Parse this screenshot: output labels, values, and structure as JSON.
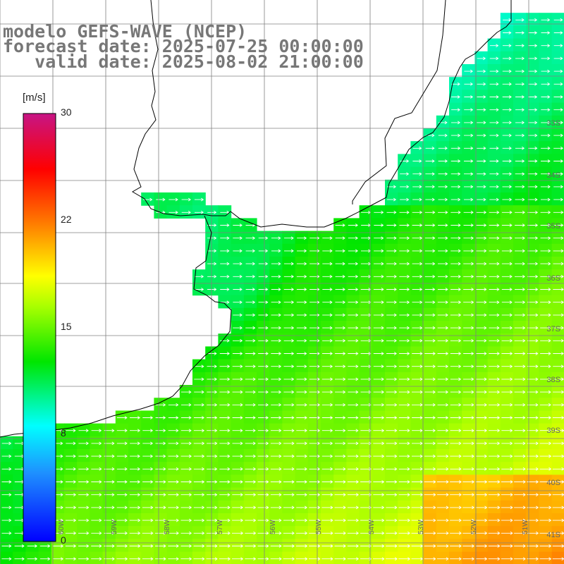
{
  "title": {
    "line1": "modelo GEFS-WAVE (NCEP)",
    "line2": "forecast date: 2025-07-25 00:00:00",
    "line3": "   valid date: 2025-08-02 21:00:00"
  },
  "colorbar": {
    "unit": "[m/s]",
    "range": [
      0,
      30
    ],
    "ticks": [
      {
        "value": 30,
        "label": "30"
      },
      {
        "value": 22,
        "label": "22"
      },
      {
        "value": 15,
        "label": "15"
      },
      {
        "value": 8,
        "label": "8"
      },
      {
        "value": 0,
        "label": "0"
      }
    ],
    "colors": [
      "#0000ff",
      "#1e90ff",
      "#00ffff",
      "#00ff00",
      "#ffff00",
      "#ff8c00",
      "#ff0000",
      "#c71585"
    ]
  },
  "map": {
    "lat_labels": [
      "33S",
      "34S",
      "35S",
      "36S",
      "37S",
      "38S",
      "39S",
      "40S",
      "41S"
    ],
    "lon_labels": [
      "60W",
      "59W",
      "58W",
      "57W",
      "56W",
      "55W",
      "54W",
      "53W",
      "52W",
      "51W"
    ],
    "arrow_direction": "eastward",
    "land_color": "#ffffff",
    "coast_color": "#000000",
    "grid_color": "#808080"
  }
}
